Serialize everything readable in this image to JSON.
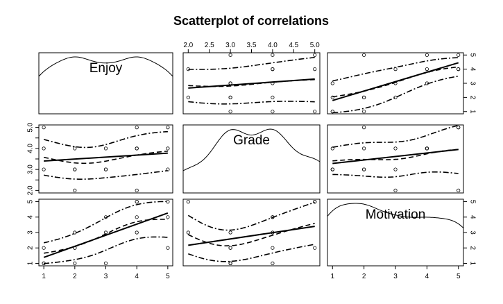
{
  "chart_data": {
    "type": "scatter-matrix",
    "title": "Scatterplot of correlations",
    "variables": [
      "Enjoy",
      "Grade",
      "Motivation"
    ],
    "ranges": {
      "Enjoy": [
        1,
        5
      ],
      "Grade": [
        2,
        5
      ],
      "Motivation": [
        1,
        5
      ]
    },
    "ticks": {
      "Enjoy": [
        "1",
        "2",
        "3",
        "4",
        "5"
      ],
      "Grade": [
        "2.0",
        "2.5",
        "3.0",
        "3.5",
        "4.0",
        "4.5",
        "5.0"
      ],
      "Motivation": [
        "1",
        "2",
        "3",
        "4",
        "5"
      ]
    },
    "observations": [
      {
        "Enjoy": 1,
        "Grade": 3,
        "Motivation": 1
      },
      {
        "Enjoy": 1,
        "Grade": 5,
        "Motivation": 2
      },
      {
        "Enjoy": 2,
        "Grade": 3,
        "Motivation": 2
      },
      {
        "Enjoy": 2,
        "Grade": 4,
        "Motivation": 2
      },
      {
        "Enjoy": 2,
        "Grade": 2,
        "Motivation": 3
      },
      {
        "Enjoy": 2,
        "Grade": 3,
        "Motivation": 1
      },
      {
        "Enjoy": 3,
        "Grade": 3,
        "Motivation": 3
      },
      {
        "Enjoy": 3,
        "Grade": 4,
        "Motivation": 4
      },
      {
        "Enjoy": 3,
        "Grade": 3,
        "Motivation": 1
      },
      {
        "Enjoy": 4,
        "Grade": 4,
        "Motivation": 4
      },
      {
        "Enjoy": 4,
        "Grade": 4,
        "Motivation": 3
      },
      {
        "Enjoy": 4,
        "Grade": 2,
        "Motivation": 5
      },
      {
        "Enjoy": 5,
        "Grade": 5,
        "Motivation": 5
      },
      {
        "Enjoy": 5,
        "Grade": 4,
        "Motivation": 4
      },
      {
        "Enjoy": 5,
        "Grade": 3,
        "Motivation": 2
      },
      {
        "Enjoy": 1,
        "Grade": 4,
        "Motivation": 1
      },
      {
        "Enjoy": 4,
        "Grade": 5,
        "Motivation": 5
      }
    ],
    "diagonal": "density curve with variable name",
    "off_diagonal": "scatter with linear fit (solid), smoother (dashed) and spread (dot-dash)",
    "grid": false
  }
}
